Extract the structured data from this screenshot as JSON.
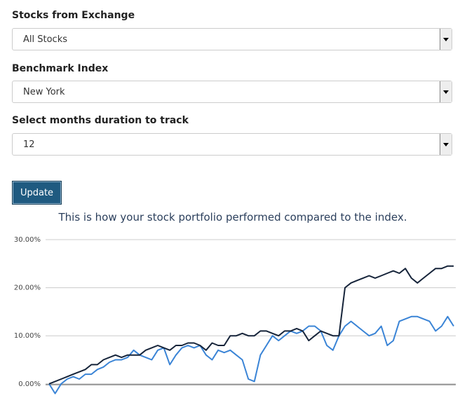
{
  "form": {
    "fields": [
      {
        "label": "Stocks from Exchange",
        "value": "All Stocks"
      },
      {
        "label": "Benchmark Index",
        "value": "New York"
      },
      {
        "label": "Select months duration to track",
        "value": "12"
      }
    ],
    "button": "Update"
  },
  "caption": "This is how your stock portfolio performed compared to the index.",
  "chart_data": {
    "type": "line",
    "series": [
      {
        "color": "#16243a",
        "values": [
          0,
          0.5,
          1,
          1.5,
          2,
          2.5,
          3,
          4,
          4,
          5,
          5.5,
          6,
          5.5,
          6,
          6,
          6,
          7,
          7.5,
          8,
          7.5,
          7,
          8,
          8,
          8.5,
          8.5,
          8,
          7,
          8.5,
          8,
          8,
          10,
          10,
          10.5,
          10,
          10,
          11,
          11,
          10.5,
          10,
          11,
          11,
          11.5,
          11,
          9,
          10,
          11,
          10.5,
          10,
          10,
          20,
          21,
          21.5,
          22,
          22.5,
          22,
          22.5,
          23,
          23.5,
          23,
          24,
          22,
          21,
          22,
          23,
          24,
          24,
          24.5,
          24.5
        ]
      },
      {
        "color": "#3a84d6",
        "values": [
          0,
          -2,
          0,
          1,
          1.5,
          1,
          2,
          2,
          3,
          3.5,
          4.5,
          5,
          5,
          5.5,
          7,
          6,
          5.5,
          5,
          7,
          7.5,
          4,
          6,
          7.5,
          8,
          7.5,
          8,
          6,
          5,
          7,
          6.5,
          7,
          6,
          5,
          1,
          0.5,
          6,
          8,
          10,
          9,
          10,
          11,
          10.5,
          11,
          12,
          12,
          11,
          8,
          7,
          10,
          12,
          13,
          12,
          11,
          10,
          10.5,
          12,
          8,
          9,
          13,
          13.5,
          14,
          14,
          13.5,
          13,
          11,
          12,
          14,
          12
        ]
      }
    ],
    "ylim": [
      -2.5,
      30
    ],
    "yticks": [
      {
        "value": 0,
        "label": "0.00%"
      },
      {
        "value": 10,
        "label": "10.00%"
      },
      {
        "value": 20,
        "label": "20.00%"
      },
      {
        "value": 30,
        "label": "30.00%"
      }
    ],
    "grid": true
  }
}
